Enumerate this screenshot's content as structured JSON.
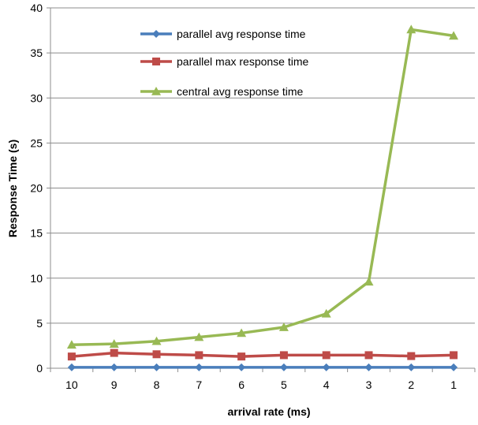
{
  "chart_data": {
    "type": "line",
    "title": "",
    "xlabel": "arrival rate (ms)",
    "ylabel": "Response Time (s)",
    "categories": [
      "10",
      "9",
      "8",
      "7",
      "6",
      "5",
      "4",
      "3",
      "2",
      "1"
    ],
    "ylim": [
      0,
      40
    ],
    "yticks": [
      "0",
      "5",
      "10",
      "15",
      "20",
      "25",
      "30",
      "35",
      "40"
    ],
    "grid": true,
    "legend_position": "top-center",
    "series": [
      {
        "name": "parallel avg response time",
        "color": "#4a7ebb",
        "marker": "diamond",
        "values": [
          0.1,
          0.1,
          0.1,
          0.1,
          0.1,
          0.1,
          0.1,
          0.1,
          0.1,
          0.1
        ]
      },
      {
        "name": "parallel max response time",
        "color": "#be4b48",
        "marker": "square",
        "values": [
          1.3,
          1.7,
          1.55,
          1.45,
          1.3,
          1.45,
          1.45,
          1.45,
          1.35,
          1.45
        ]
      },
      {
        "name": "central avg response time",
        "color": "#98b954",
        "marker": "triangle",
        "values": [
          2.6,
          2.7,
          3.0,
          3.45,
          3.9,
          4.55,
          6.05,
          9.6,
          37.6,
          36.9
        ]
      }
    ]
  }
}
